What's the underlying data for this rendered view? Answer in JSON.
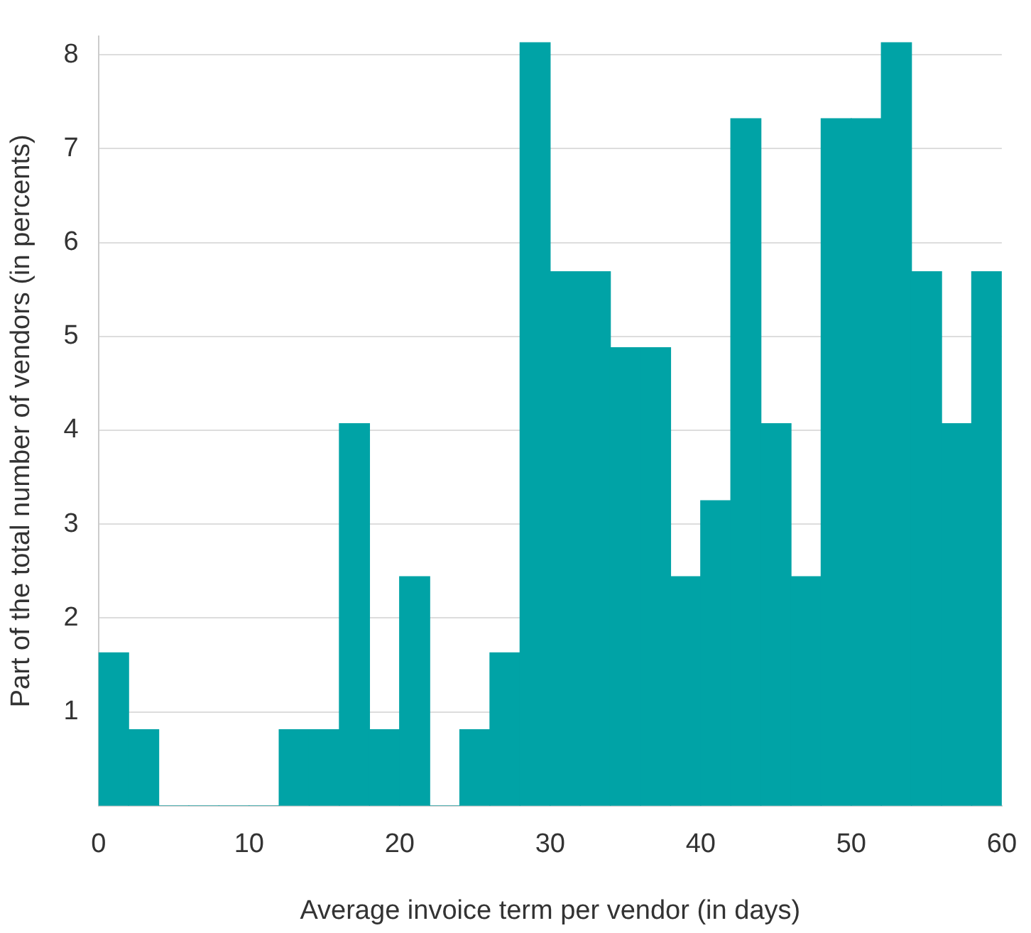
{
  "chart_data": {
    "type": "histogram",
    "xlabel": "Average invoice term per vendor (in days)",
    "ylabel": "Part of the total number of vendors (in percents)",
    "bins": [
      0,
      2,
      4,
      6,
      8,
      10,
      12,
      14,
      16,
      18,
      20,
      22,
      24,
      26,
      28,
      30,
      32,
      34,
      36,
      38,
      40,
      42,
      44,
      46,
      48,
      50,
      52,
      54,
      56,
      58,
      60
    ],
    "values": [
      1.63,
      0.81,
      0,
      0,
      0,
      0,
      0.81,
      0.81,
      4.07,
      0.81,
      2.44,
      0,
      0.81,
      1.63,
      8.13,
      5.69,
      5.69,
      4.88,
      4.88,
      2.44,
      3.25,
      7.32,
      4.07,
      2.44,
      7.32,
      7.32,
      8.13,
      5.69,
      4.07,
      5.69
    ],
    "color": "#00a3a6",
    "xlim": [
      0,
      60
    ],
    "xticks": [
      0,
      10,
      20,
      30,
      40,
      50,
      60
    ],
    "ylim": [
      0,
      8.2
    ],
    "yticks": [
      1,
      2,
      3,
      4,
      5,
      6,
      7,
      8
    ],
    "grid": "y",
    "legend": false
  }
}
